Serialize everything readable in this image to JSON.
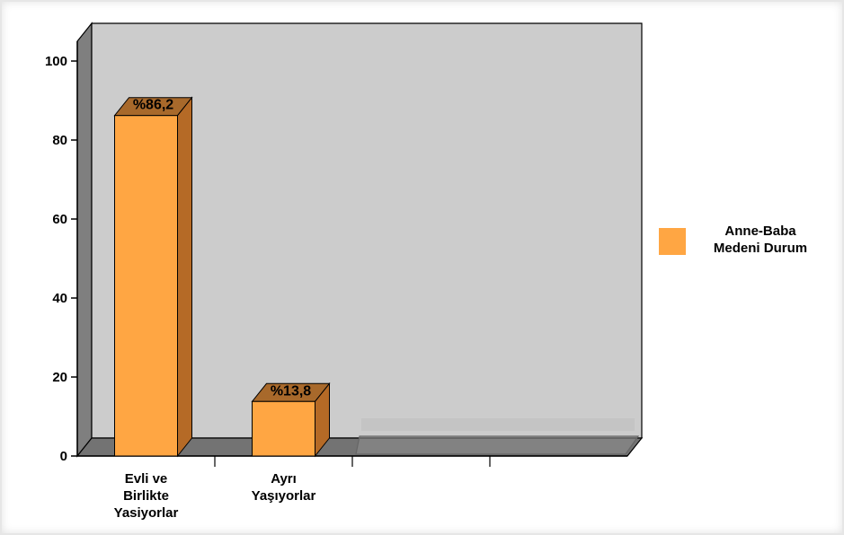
{
  "chart_data": {
    "type": "bar",
    "categories": [
      [
        "Evli ve",
        "Birlikte",
        "Yasiyorlar"
      ],
      [
        "Ayrı",
        "Yaşıyorlar"
      ],
      [
        ""
      ],
      [
        ""
      ]
    ],
    "series": [
      {
        "name": "Anne-Baba Medeni Durum",
        "name_lines": [
          "Anne-Baba",
          "Medeni Durum"
        ],
        "values": [
          86.2,
          13.8,
          null,
          null
        ],
        "labels": [
          "%86,2",
          "%13,8",
          "",
          ""
        ]
      }
    ],
    "yticks": [
      "0",
      "20",
      "40",
      "60",
      "80",
      "100"
    ],
    "ylim": [
      0,
      105
    ],
    "grid": false,
    "legend_position": "right",
    "colors": {
      "bar_front": "#FFA643",
      "bar_side": "#B56A26",
      "bar_top": "#A8692B",
      "plot_back": "#CCCCCC",
      "left_wall": "#7F7F7F",
      "floor": "#737373",
      "floor_empty": "#8C8C8C",
      "axis": "#000000"
    }
  }
}
